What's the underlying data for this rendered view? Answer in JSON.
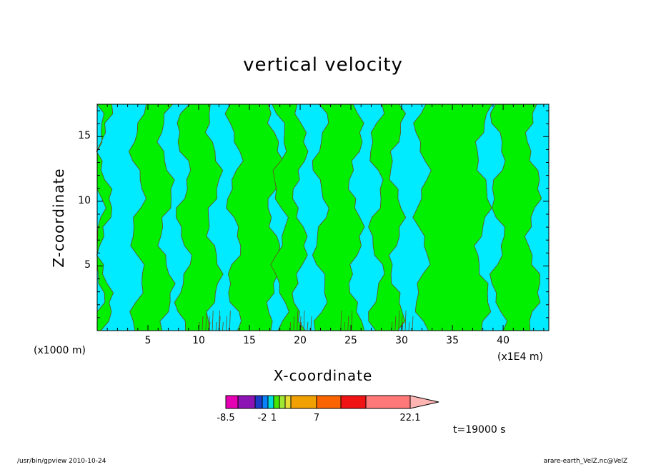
{
  "chart_data": {
    "type": "heatmap",
    "title": "vertical velocity",
    "xlabel": "X-coordinate",
    "ylabel": "Z-coordinate",
    "x_unit": "(x1E4 m)",
    "y_unit": "(x1000 m)",
    "xlim": [
      0,
      44.5
    ],
    "ylim": [
      0,
      17.5
    ],
    "x_ticks": [
      5,
      10,
      15,
      20,
      25,
      30,
      35,
      40
    ],
    "y_ticks": [
      5,
      10,
      15
    ],
    "time_label": "t=19000 s",
    "levels": {
      "background": "cyan",
      "above": "green",
      "green_regions_x": [
        [
          0,
          0.8
        ],
        [
          4,
          6.8
        ],
        [
          8.5,
          11.5
        ],
        [
          13.5,
          17.5
        ],
        [
          18,
          20
        ],
        [
          22,
          25.5
        ],
        [
          27.5,
          29.5
        ],
        [
          32,
          38
        ],
        [
          39.5,
          43
        ]
      ]
    },
    "colorbar": {
      "colors": [
        "#e600b4",
        "#8c14b4",
        "#1e3cc8",
        "#0a82fa",
        "#00dcdc",
        "#46e600",
        "#a0e632",
        "#e6dc32",
        "#f0a000",
        "#fa6400",
        "#f01414",
        "#ff7878"
      ],
      "tick_labels": [
        "-8.5",
        "-2",
        "1",
        "7",
        "22.1"
      ],
      "extend_color": "#ffb4b4"
    }
  },
  "colors": {
    "cyan": "#00ebff",
    "green": "#00f000",
    "frame": "#000000"
  },
  "footer": {
    "left": "/usr/bin/gpview   2010-10-24",
    "right": "arare-earth_VelZ.nc@VelZ"
  }
}
